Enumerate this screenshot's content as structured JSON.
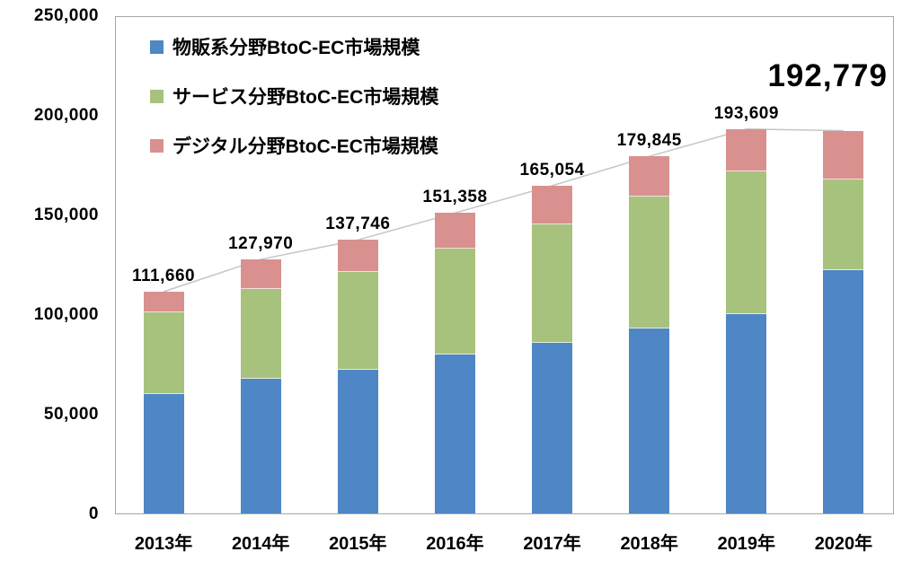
{
  "colors": {
    "blue": "#4E86C6",
    "green": "#A7C27D",
    "pink": "#D9918F",
    "line": "#C6C6C6",
    "border": "#A6A6A6",
    "text": "#000000",
    "background": "#FFFFFF"
  },
  "chart_data": {
    "type": "bar",
    "stacked": true,
    "categories": [
      "2013年",
      "2014年",
      "2015年",
      "2016年",
      "2017年",
      "2018年",
      "2019年",
      "2020年"
    ],
    "series": [
      {
        "name": "物販系分野BtoC-EC市場規模",
        "color_key": "blue",
        "values": [
          59931,
          68042,
          72398,
          80043,
          86008,
          92992,
          100515,
          122333
        ]
      },
      {
        "name": "サービス分野BtoC-EC市場規模",
        "color_key": "green",
        "values": [
          41210,
          44816,
          49014,
          53532,
          59568,
          66471,
          71672,
          45832
        ]
      },
      {
        "name": "デジタル分野BtoC-EC市場規模",
        "color_key": "pink",
        "values": [
          10519,
          15111,
          16334,
          17782,
          19478,
          20382,
          21422,
          24614
        ]
      }
    ],
    "totals": [
      111660,
      127970,
      137746,
      151358,
      165054,
      179845,
      193609,
      192779
    ],
    "total_labels": [
      "111,660",
      "127,970",
      "137,746",
      "151,358",
      "165,054",
      "179,845",
      "193,609"
    ],
    "highlight_label": "192,779",
    "y_ticks": [
      "250,000",
      "200,000",
      "150,000",
      "100,000",
      "50,000",
      "0"
    ],
    "ylim": [
      0,
      250000
    ],
    "grid": false,
    "legend_position": "top-left",
    "totals_line": true
  }
}
